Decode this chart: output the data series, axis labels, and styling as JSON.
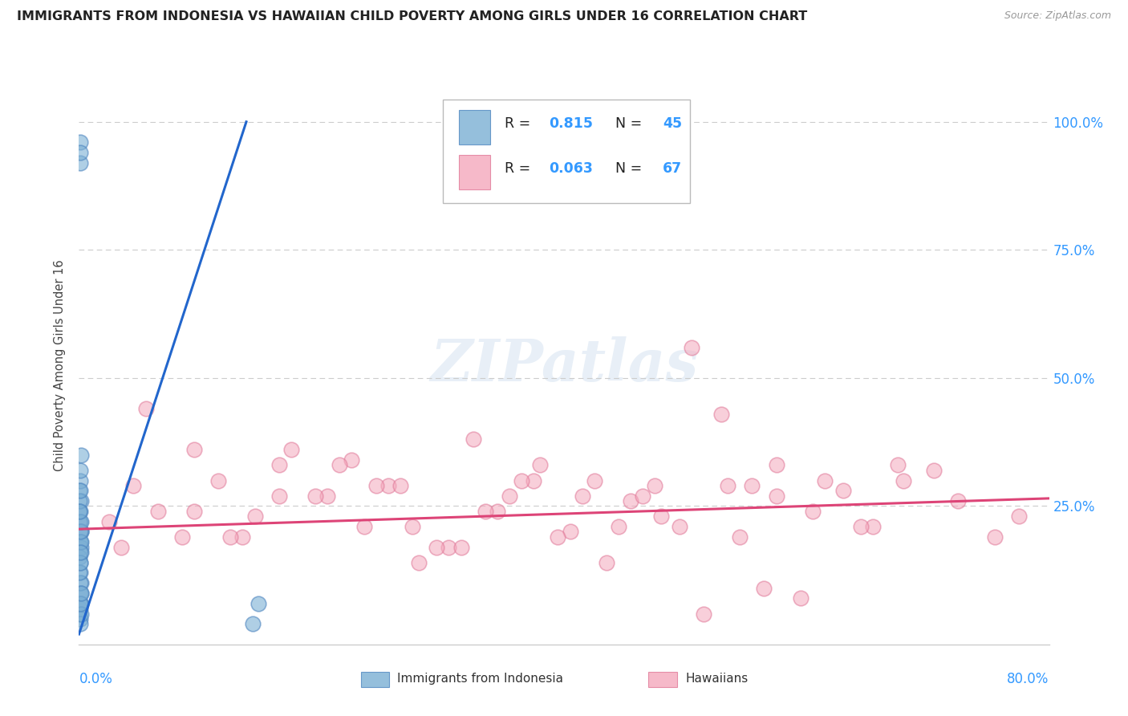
{
  "title": "IMMIGRANTS FROM INDONESIA VS HAWAIIAN CHILD POVERTY AMONG GIRLS UNDER 16 CORRELATION CHART",
  "source": "Source: ZipAtlas.com",
  "ylabel": "Child Poverty Among Girls Under 16",
  "xlim": [
    0.0,
    0.8
  ],
  "ylim": [
    -0.02,
    1.07
  ],
  "ytick_vals": [
    0.0,
    0.25,
    0.5,
    0.75,
    1.0
  ],
  "ytick_labels_right": [
    "",
    "25.0%",
    "50.0%",
    "75.0%",
    "100.0%"
  ],
  "series1_label": "Immigrants from Indonesia",
  "series1_color": "#7BAFD4",
  "series1_edge": "#4F86C0",
  "series1_R": "0.815",
  "series1_N": "45",
  "series2_label": "Hawaiians",
  "series2_color": "#F4A8BC",
  "series2_edge": "#E07898",
  "series2_R": "0.063",
  "series2_N": "67",
  "R_color": "#3399FF",
  "N_color": "#3399FF",
  "watermark_text": "ZIPatlas",
  "blue_scatter_x": [
    0.0005,
    0.001,
    0.001,
    0.0015,
    0.002,
    0.0005,
    0.001,
    0.001,
    0.0015,
    0.002,
    0.0005,
    0.001,
    0.001,
    0.0015,
    0.001,
    0.0005,
    0.001,
    0.0015,
    0.001,
    0.002,
    0.0005,
    0.001,
    0.001,
    0.0005,
    0.001,
    0.0015,
    0.001,
    0.002,
    0.001,
    0.0005,
    0.001,
    0.0015,
    0.001,
    0.002,
    0.001,
    0.0005,
    0.001,
    0.0015,
    0.001,
    0.002,
    0.001,
    0.001,
    0.001,
    0.143,
    0.148
  ],
  "blue_scatter_y": [
    0.28,
    0.3,
    0.32,
    0.26,
    0.35,
    0.24,
    0.22,
    0.18,
    0.2,
    0.17,
    0.15,
    0.12,
    0.14,
    0.1,
    0.08,
    0.22,
    0.24,
    0.2,
    0.18,
    0.16,
    0.26,
    0.28,
    0.05,
    0.04,
    0.06,
    0.08,
    0.03,
    0.06,
    0.1,
    0.12,
    0.14,
    0.18,
    0.2,
    0.22,
    0.16,
    0.24,
    0.02,
    0.04,
    0.06,
    0.08,
    0.92,
    0.96,
    0.94,
    0.02,
    0.06
  ],
  "pink_scatter_x": [
    0.025,
    0.055,
    0.085,
    0.115,
    0.145,
    0.175,
    0.205,
    0.225,
    0.255,
    0.28,
    0.305,
    0.325,
    0.355,
    0.38,
    0.405,
    0.425,
    0.455,
    0.48,
    0.505,
    0.53,
    0.555,
    0.575,
    0.605,
    0.63,
    0.655,
    0.68,
    0.705,
    0.725,
    0.755,
    0.775,
    0.035,
    0.065,
    0.095,
    0.135,
    0.165,
    0.215,
    0.245,
    0.275,
    0.315,
    0.345,
    0.375,
    0.415,
    0.445,
    0.475,
    0.515,
    0.545,
    0.575,
    0.615,
    0.645,
    0.675,
    0.045,
    0.095,
    0.125,
    0.165,
    0.195,
    0.235,
    0.265,
    0.295,
    0.335,
    0.365,
    0.395,
    0.435,
    0.465,
    0.495,
    0.535,
    0.565,
    0.595
  ],
  "pink_scatter_y": [
    0.22,
    0.44,
    0.19,
    0.3,
    0.23,
    0.36,
    0.27,
    0.34,
    0.29,
    0.14,
    0.17,
    0.38,
    0.27,
    0.33,
    0.2,
    0.3,
    0.26,
    0.23,
    0.56,
    0.43,
    0.29,
    0.33,
    0.24,
    0.28,
    0.21,
    0.3,
    0.32,
    0.26,
    0.19,
    0.23,
    0.17,
    0.24,
    0.36,
    0.19,
    0.27,
    0.33,
    0.29,
    0.21,
    0.17,
    0.24,
    0.3,
    0.27,
    0.21,
    0.29,
    0.04,
    0.19,
    0.27,
    0.3,
    0.21,
    0.33,
    0.29,
    0.24,
    0.19,
    0.33,
    0.27,
    0.21,
    0.29,
    0.17,
    0.24,
    0.3,
    0.19,
    0.14,
    0.27,
    0.21,
    0.29,
    0.09,
    0.07
  ],
  "blue_line_x": [
    0.0,
    0.138
  ],
  "blue_line_y": [
    0.0,
    1.0
  ],
  "pink_line_x": [
    0.0,
    0.8
  ],
  "pink_line_y": [
    0.205,
    0.265
  ],
  "bg_color": "#FFFFFF",
  "grid_color": "#CCCCCC",
  "spine_color": "#CCCCCC"
}
